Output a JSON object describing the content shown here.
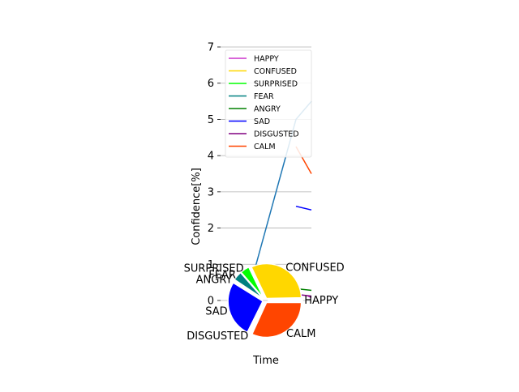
{
  "chart_data": [
    {
      "type": "line",
      "xlabel": "Time",
      "ylabel": "Confidence[%]",
      "ylim": [
        0,
        7
      ],
      "yticks": [
        0,
        1,
        2,
        3,
        4,
        5,
        6,
        7
      ],
      "grid": "horizontal",
      "legend_placement": "top-left",
      "legend": [
        "HAPPY",
        "CONFUSED",
        "SURPRISED",
        "FEAR",
        "ANGRY",
        "SAD",
        "DISGUSTED",
        "CALM"
      ],
      "series": [
        {
          "name": "HAPPY",
          "color": "#cc33cc",
          "points": [
            [
              0.96,
              0.12
            ],
            [
              1.0,
              0.08
            ]
          ]
        },
        {
          "name": "CONFUSED",
          "color": "#ffd700",
          "points": []
        },
        {
          "name": "SURPRISED",
          "color": "#00ff00",
          "points": []
        },
        {
          "name": "FEAR",
          "color": "#008080",
          "points": []
        },
        {
          "name": "ANGRY",
          "color": "#008000",
          "points": [
            [
              0.86,
              0.32
            ],
            [
              1.0,
              0.28
            ]
          ]
        },
        {
          "name": "SAD",
          "color": "#0000ff",
          "points": [
            [
              0.83,
              2.6
            ],
            [
              1.0,
              2.5
            ]
          ]
        },
        {
          "name": "DISGUSTED",
          "color": "#800080",
          "points": [
            [
              0.86,
              0.16
            ],
            [
              1.0,
              0.12
            ]
          ]
        },
        {
          "name": "CALM",
          "color": "#ff4500",
          "points": [
            [
              0.83,
              4.25
            ],
            [
              1.0,
              3.5
            ]
          ]
        },
        {
          "color": "#1f77b4",
          "points": [
            [
              0.37,
              0.8
            ],
            [
              0.83,
              5.0
            ],
            [
              1.0,
              5.5
            ]
          ]
        }
      ]
    },
    {
      "type": "pie",
      "slices": [
        {
          "label": "HAPPY",
          "value": 0.3,
          "color": "#cc33cc"
        },
        {
          "label": "CONFUSED",
          "value": 30,
          "color": "#ffd700"
        },
        {
          "label": "SURPRISED",
          "value": 4,
          "color": "#00ff00"
        },
        {
          "label": "FEAR",
          "value": 4,
          "color": "#008080"
        },
        {
          "label": "ANGRY",
          "value": 0.5,
          "color": "#008000"
        },
        {
          "label": "SAD",
          "value": 25,
          "color": "#0000ff"
        },
        {
          "label": "DISGUSTED",
          "value": 0.5,
          "color": "#800080"
        },
        {
          "label": "CALM",
          "value": 30,
          "color": "#ff4500"
        }
      ]
    }
  ]
}
